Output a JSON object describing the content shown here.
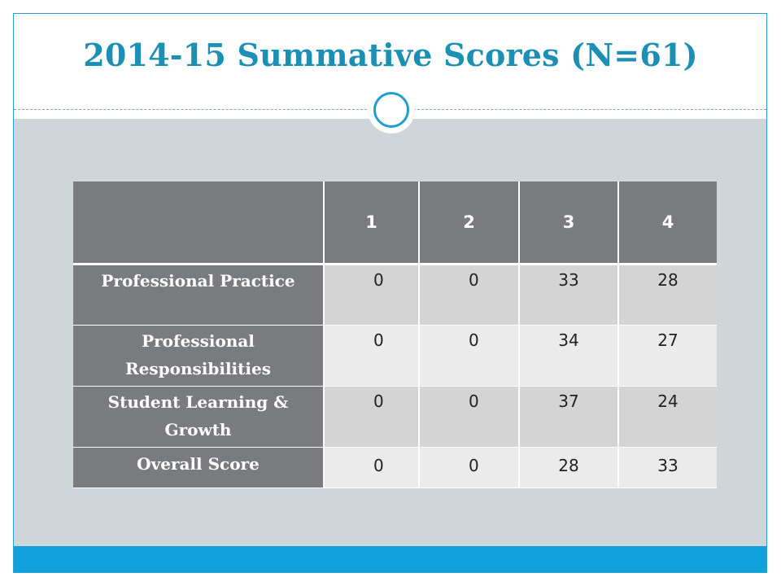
{
  "slide": {
    "title": "2014-15 Summative Scores (N=61)"
  },
  "table": {
    "columns": [
      "",
      "1",
      "2",
      "3",
      "4"
    ],
    "rows": [
      {
        "label": "Professional Practice",
        "values": [
          "0",
          "0",
          "33",
          "28"
        ]
      },
      {
        "label": "Professional Responsibilities",
        "values": [
          "0",
          "0",
          "34",
          "27"
        ]
      },
      {
        "label": "Student Learning & Growth",
        "values": [
          "0",
          "0",
          "37",
          "24"
        ]
      },
      {
        "label": "Overall Score",
        "values": [
          "0",
          "0",
          "28",
          "33"
        ]
      }
    ]
  },
  "colors": {
    "title": "#1c8fb4",
    "accent": "#10a0db",
    "panel": "#cfd6da",
    "header_fill": "#7a7b7e"
  },
  "icons": [
    "circle-ring-icon"
  ]
}
